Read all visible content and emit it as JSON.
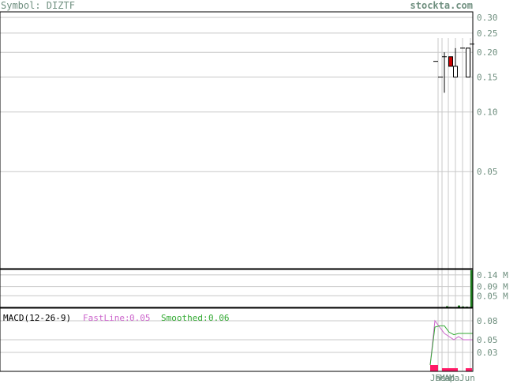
{
  "header": {
    "symbol_label": "Symbol: DIZTF",
    "site": "stockta.com"
  },
  "colors": {
    "grid": "#c8c8c8",
    "frame": "#000000",
    "axis_text": "#6f8f7f",
    "up_candle": "#ffffff",
    "down_candle": "#cc0000",
    "volume": "#1a7a1a",
    "fastline": "#cc66cc",
    "smoothed": "#33aa33",
    "histogram": "#ff1a66"
  },
  "chart_data": [
    {
      "type": "candlestick",
      "scale": "log",
      "price_ticks": [
        "0.30",
        "0.25",
        "0.20",
        "0.15",
        "0.10",
        "0.05"
      ],
      "price_tick_values": [
        0.3,
        0.25,
        0.2,
        0.15,
        0.1,
        0.05
      ],
      "candles": [
        {
          "open": 0.18,
          "high": 0.18,
          "low": 0.18,
          "close": 0.18
        },
        {
          "open": 0.15,
          "high": 0.15,
          "low": 0.15,
          "close": 0.15
        },
        {
          "open": 0.19,
          "high": 0.2,
          "low": 0.125,
          "close": 0.19
        },
        {
          "open": 0.19,
          "high": 0.19,
          "low": 0.17,
          "close": 0.17
        },
        {
          "open": 0.15,
          "high": 0.21,
          "low": 0.15,
          "close": 0.17
        },
        {
          "open": 0.21,
          "high": 0.21,
          "low": 0.21,
          "close": 0.21
        },
        {
          "open": 0.15,
          "high": 0.21,
          "low": 0.15,
          "close": 0.21
        },
        {
          "open": 0.22,
          "high": 0.22,
          "low": 0.22,
          "close": 0.22
        }
      ]
    },
    {
      "type": "bar",
      "name": "volume",
      "volume_ticks": [
        "0.14 M",
        "0.09 M",
        "0.05 M"
      ],
      "volume_tick_values": [
        140000,
        90000,
        50000
      ],
      "values": [
        1000,
        1500,
        1000,
        1200,
        5000,
        2000,
        8000,
        4000,
        3000,
        160000
      ]
    },
    {
      "type": "line",
      "indicator": "MACD(12-26-9)",
      "fastline_label": "FastLine:",
      "fastline_value": "0.05",
      "smoothed_label": "Smoothed:",
      "smoothed_value": "0.06",
      "macd_ticks": [
        "0.08",
        "0.05",
        "0.03"
      ],
      "macd_tick_values": [
        0.08,
        0.05,
        0.03
      ],
      "series": [
        {
          "name": "FastLine",
          "values": [
            0.01,
            0.08,
            0.07,
            0.06,
            0.055,
            0.05,
            0.055,
            0.05,
            0.05
          ]
        },
        {
          "name": "Smoothed",
          "values": [
            0.01,
            0.07,
            0.072,
            0.072,
            0.062,
            0.058,
            0.06,
            0.06,
            0.06
          ]
        }
      ],
      "histogram": [
        0.01,
        0.005,
        0.005,
        0.005,
        0.005,
        0.005,
        0.005,
        0.005,
        0.005,
        0.005
      ],
      "x_labels": [
        "Ja",
        "Fe",
        "Ma",
        "Ap",
        "Ma",
        "Jun"
      ]
    }
  ]
}
